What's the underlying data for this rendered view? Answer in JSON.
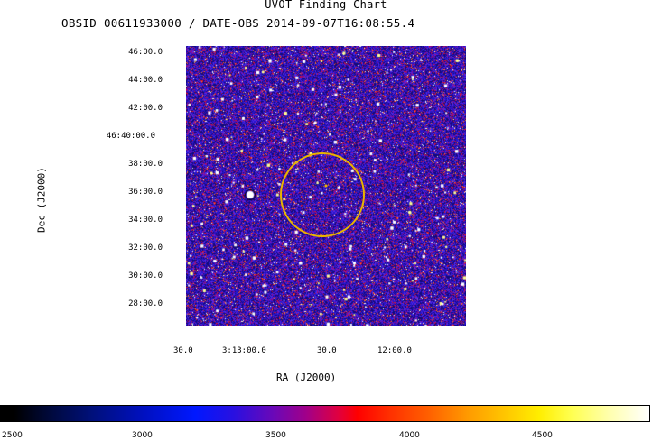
{
  "title": "UVOT Finding Chart",
  "subtitle": "OBSID 00611933000 / DATE-OBS 2014-09-07T16:08:55.4",
  "axes": {
    "x_label": "RA (J2000)",
    "y_label": "Dec (J2000)",
    "y_ticks": [
      "46:00.0",
      "44:00.0",
      "42:00.0",
      "46:40:00.0",
      "38:00.0",
      "36:00.0",
      "34:00.0",
      "32:00.0",
      "30:00.0",
      "28:00.0"
    ],
    "x_ticks": [
      "30.0",
      "3:13:00.0",
      "30.0",
      "12:00.0"
    ]
  },
  "colorbar": {
    "ticks": [
      "2500",
      "3000",
      "3500",
      "4000",
      "4500"
    ],
    "colors": [
      "#000000",
      "#0018ff",
      "#ff0000",
      "#ffc800",
      "#ffffff"
    ]
  },
  "marker": {
    "shape": "circle",
    "color": "#e8b400"
  }
}
